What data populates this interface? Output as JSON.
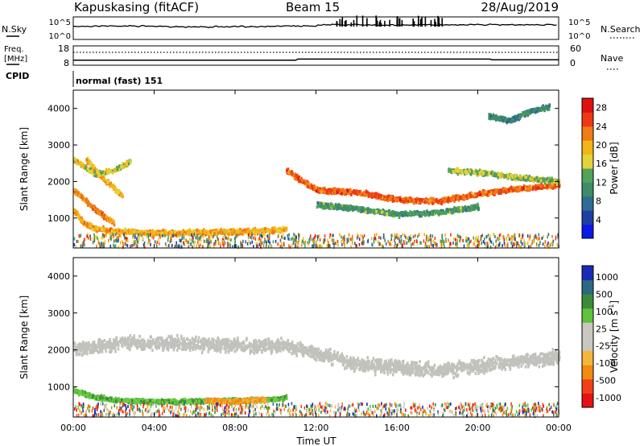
{
  "header": {
    "station": "Kapuskasing (fitACF)",
    "beam": "Beam 15",
    "date": "28/Aug/2019"
  },
  "labels": {
    "nsky": "N.Sky",
    "nsearch": "N.Search",
    "freq": "Freq.",
    "mhz": "[MHz]",
    "cpid_label": "CPID",
    "nave": "Nave",
    "cpid_value": "normal (fast) 151",
    "xlabel": "Time UT"
  },
  "strip_ticks": {
    "noise_left": [
      "10^5",
      "10^0"
    ],
    "noise_right": [
      "10^5",
      "10^0"
    ],
    "freq_left": [
      "18",
      "8"
    ],
    "freq_right": [
      "60",
      "0"
    ]
  },
  "colors": {
    "power_bar": [
      "#0a1ae6",
      "#1f3fa6",
      "#2f6b94",
      "#3e8c6a",
      "#52a25a",
      "#e4d23a",
      "#f2b416",
      "#f07c16",
      "#ee3a14",
      "#e01010"
    ],
    "velocity_bar": [
      "#e61212",
      "#f0401a",
      "#f08a10",
      "#f4b63a",
      "#c8c8c0",
      "#c8c8c0",
      "#5ec23a",
      "#3d8a3a",
      "#2a6a82",
      "#1a2ab8"
    ],
    "grey_scatter": "#c2c2bc"
  },
  "chart_data": [
    {
      "type": "line",
      "title": "N.Sky / N.Search",
      "x_unit": "hour UT",
      "xlim": [
        0,
        24
      ],
      "scale": "log",
      "ylim": [
        "10^0",
        "10^5"
      ],
      "series": [
        {
          "name": "N.Sky",
          "x": [
            0,
            2,
            4,
            6,
            8,
            10,
            12,
            13,
            14,
            15,
            16,
            17,
            18,
            20,
            22,
            24
          ],
          "y": [
            1800,
            1500,
            1400,
            1300,
            1300,
            1400,
            1800,
            20000,
            25000,
            30000,
            12000,
            35000,
            6000,
            8000,
            6000,
            5000
          ]
        }
      ]
    },
    {
      "type": "line",
      "title": "Freq. [MHz] / Nave",
      "x_unit": "hour UT",
      "xlim": [
        0,
        24
      ],
      "ylim_left": [
        8,
        18
      ],
      "ylim_right": [
        0,
        60
      ],
      "series": [
        {
          "name": "Freq.",
          "x": [
            0,
            11,
            11.1,
            20.6,
            20.7,
            24
          ],
          "y": [
            10.6,
            10.6,
            11.3,
            11.3,
            10.9,
            10.9
          ]
        },
        {
          "name": "Nave",
          "x": [
            0,
            24
          ],
          "y": [
            45,
            45
          ]
        }
      ]
    },
    {
      "type": "scatter",
      "title": "Power",
      "xlabel": "Time UT",
      "ylabel": "Slant Range [km]",
      "colorbar_label": "Power [dB]",
      "xlim": [
        0,
        24
      ],
      "ylim": [
        180,
        4500
      ],
      "x_ticks": [
        "00:00",
        "04:00",
        "08:00",
        "12:00",
        "16:00",
        "20:00",
        "00:00"
      ],
      "y_ticks": [
        1000,
        2000,
        3000,
        4000
      ],
      "colorbar_ticks": [
        4,
        8,
        12,
        16,
        20,
        24,
        28
      ],
      "clim": [
        0,
        30
      ],
      "features": [
        {
          "feature": "near-range echo",
          "t": [
            0.0,
            0.5,
            1.0,
            2.0,
            4.0,
            6.0,
            8.0,
            10.0,
            10.5
          ],
          "range": [
            1200,
            850,
            720,
            630,
            590,
            600,
            620,
            660,
            700
          ],
          "level": 20
        },
        {
          "feature": "early slanted band 1",
          "t": [
            0.0,
            0.5,
            1.0,
            1.6,
            2.0
          ],
          "range": [
            1750,
            1500,
            1250,
            1000,
            850
          ],
          "level": 22
        },
        {
          "feature": "early slanted band 2",
          "t": [
            0.6,
            1.2,
            1.8,
            2.4
          ],
          "range": [
            2600,
            2200,
            1900,
            1600
          ],
          "level": 19
        },
        {
          "feature": "early high patch",
          "t": [
            0.0,
            0.5,
            1.0,
            2.0,
            2.8
          ],
          "range": [
            2600,
            2400,
            2200,
            2300,
            2550
          ],
          "level": 17
        },
        {
          "feature": "evening band",
          "t": [
            10.5,
            12.0,
            14.0,
            16.0,
            18.0,
            20.0,
            22.0,
            24.0
          ],
          "range": [
            2300,
            1750,
            1700,
            1500,
            1450,
            1650,
            1800,
            1900
          ],
          "level": 24
        },
        {
          "feature": "lower evening band",
          "t": [
            12.0,
            14.0,
            16.0,
            18.0,
            20.0
          ],
          "range": [
            1350,
            1250,
            1100,
            1150,
            1300
          ],
          "level": 12
        },
        {
          "feature": "upper scatter",
          "t": [
            18.5,
            20.0,
            22.0,
            24.0
          ],
          "range": [
            2300,
            2250,
            2100,
            2000
          ],
          "level": 15
        },
        {
          "feature": "far-range patch",
          "t": [
            20.5,
            21.5,
            22.5,
            23.5
          ],
          "range": [
            3800,
            3650,
            3900,
            4050
          ],
          "level": 10
        }
      ]
    },
    {
      "type": "scatter",
      "title": "Velocity",
      "xlabel": "Time UT",
      "ylabel": "Slant Range [km]",
      "colorbar_label": "Velocity [m s-1]",
      "xlim": [
        0,
        24
      ],
      "ylim": [
        180,
        4500
      ],
      "x_ticks": [
        "00:00",
        "04:00",
        "08:00",
        "12:00",
        "16:00",
        "20:00",
        "00:00"
      ],
      "y_ticks": [
        1000,
        2000,
        3000,
        4000
      ],
      "colorbar_ticks": [
        "1000",
        "500",
        "100",
        "25",
        "-25",
        "-100",
        "-500",
        "-1000"
      ],
      "features": [
        {
          "feature": "near-range echo",
          "t": [
            0.0,
            1.0,
            2.0,
            4.0,
            6.0,
            8.0,
            10.0,
            10.5
          ],
          "range": [
            900,
            720,
            630,
            590,
            600,
            620,
            660,
            700
          ],
          "velocity": "100 to 500"
        },
        {
          "feature": "ionospheric bands",
          "t": [
            0.0,
            2.5,
            10.5,
            14.0,
            18.0,
            24.0
          ],
          "range": [
            2000,
            2200,
            2100,
            1600,
            1450,
            1800
          ],
          "velocity": "-25 to 25"
        },
        {
          "feature": "morning negative patch",
          "t": [
            6.5,
            7.5,
            8.5,
            9.5
          ],
          "range": [
            620,
            600,
            620,
            650
          ],
          "velocity": "-100 to -500"
        }
      ]
    }
  ]
}
